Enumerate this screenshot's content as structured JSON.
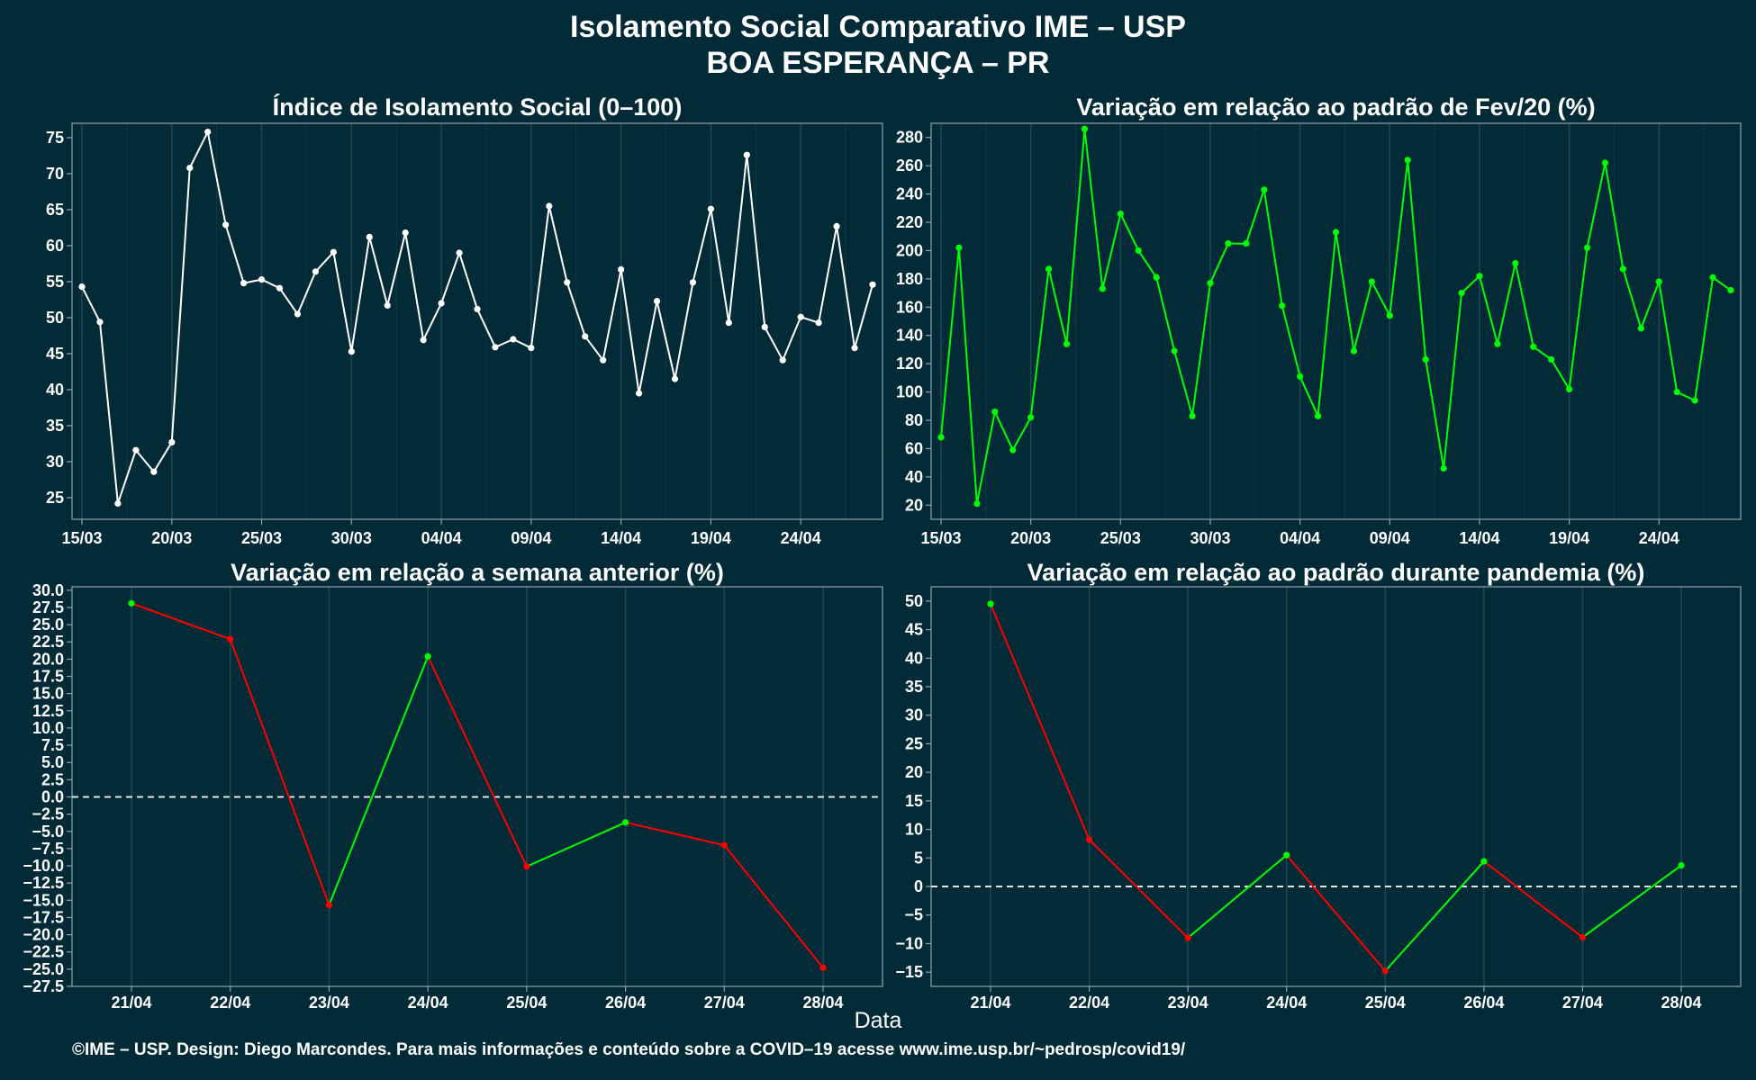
{
  "page": {
    "title_line1": "Isolamento Social Comparativo IME – USP",
    "title_line2": "BOA ESPERANÇA – PR",
    "footer": "©IME – USP. Design: Diego Marcondes. Para mais informações e conteúdo sobre a COVID–19 acesse www.ime.usp.br/~pedrosp/covid19/",
    "xlabel": "Data",
    "colors": {
      "background": "#022b37",
      "white": "#ffffff",
      "green": "#00ff00",
      "red": "#ff0000",
      "grid": "#1e4753",
      "frame": "#8ea2a8"
    }
  },
  "chart_data": [
    {
      "type": "line",
      "title": "Índice de Isolamento Social (0–100)",
      "x": [
        "15/03",
        "16/03",
        "17/03",
        "18/03",
        "19/03",
        "20/03",
        "21/03",
        "22/03",
        "23/03",
        "24/03",
        "25/03",
        "26/03",
        "27/03",
        "28/03",
        "29/03",
        "30/03",
        "31/03",
        "01/04",
        "02/04",
        "03/04",
        "04/04",
        "05/04",
        "06/04",
        "07/04",
        "08/04",
        "09/04",
        "10/04",
        "11/04",
        "12/04",
        "13/04",
        "14/04",
        "15/04",
        "16/04",
        "17/04",
        "18/04",
        "19/04",
        "20/04",
        "21/04",
        "22/04",
        "23/04",
        "24/04",
        "25/04",
        "26/04",
        "27/04",
        "28/04"
      ],
      "values": [
        54.3,
        49.4,
        24.2,
        31.6,
        28.6,
        32.7,
        70.8,
        75.8,
        62.9,
        54.8,
        55.3,
        54.1,
        50.5,
        56.4,
        59.1,
        45.3,
        61.2,
        51.7,
        61.8,
        46.9,
        52.0,
        59.0,
        51.2,
        45.9,
        47.0,
        45.8,
        65.5,
        54.9,
        47.4,
        44.1,
        56.7,
        39.5,
        52.3,
        41.5,
        54.9,
        65.1,
        49.3,
        72.6,
        48.7,
        44.1,
        50.1,
        49.3,
        62.7,
        45.8,
        54.6
      ],
      "xticks": [
        "15/03",
        "20/03",
        "25/03",
        "30/03",
        "04/04",
        "09/04",
        "14/04",
        "19/04",
        "24/04"
      ],
      "ylim": [
        22,
        77
      ],
      "yticks": [
        "25",
        "30",
        "35",
        "40",
        "45",
        "50",
        "55",
        "60",
        "65",
        "70",
        "75"
      ],
      "color": "#ffffff"
    },
    {
      "type": "line",
      "title": "Variação em relação ao padrão de Fev/20 (%)",
      "x": [
        "15/03",
        "16/03",
        "17/03",
        "18/03",
        "19/03",
        "20/03",
        "21/03",
        "22/03",
        "23/03",
        "24/03",
        "25/03",
        "26/03",
        "27/03",
        "28/03",
        "29/03",
        "30/03",
        "31/03",
        "01/04",
        "02/04",
        "03/04",
        "04/04",
        "05/04",
        "06/04",
        "07/04",
        "08/04",
        "09/04",
        "10/04",
        "11/04",
        "12/04",
        "13/04",
        "14/04",
        "15/04",
        "16/04",
        "17/04",
        "18/04",
        "19/04",
        "20/04",
        "21/04",
        "22/04",
        "23/04",
        "24/04",
        "25/04",
        "26/04",
        "27/04",
        "28/04"
      ],
      "values": [
        68,
        202,
        21,
        86,
        59,
        82,
        187,
        134,
        286,
        173,
        226,
        200,
        181,
        129,
        83,
        177,
        205,
        205,
        243,
        161,
        111,
        83,
        213,
        129,
        178,
        154,
        264,
        123,
        46,
        170,
        182,
        134,
        191,
        132,
        123,
        102,
        202,
        262,
        187,
        145,
        178,
        100,
        94,
        181,
        172
      ],
      "xticks": [
        "15/03",
        "20/03",
        "25/03",
        "30/03",
        "04/04",
        "09/04",
        "14/04",
        "19/04",
        "24/04"
      ],
      "ylim": [
        10,
        290
      ],
      "yticks": [
        "20",
        "40",
        "60",
        "80",
        "100",
        "120",
        "140",
        "160",
        "180",
        "200",
        "220",
        "240",
        "260",
        "280"
      ],
      "color": "#00ff00"
    },
    {
      "type": "line",
      "title": "Variação em relação a semana anterior (%)",
      "x": [
        "21/04",
        "22/04",
        "23/04",
        "24/04",
        "25/04",
        "26/04",
        "27/04",
        "28/04"
      ],
      "values": [
        28.1,
        22.9,
        -15.7,
        20.4,
        -10.1,
        -3.7,
        -7.0,
        -24.8
      ],
      "xticks": [
        "21/04",
        "22/04",
        "23/04",
        "24/04",
        "25/04",
        "26/04",
        "27/04",
        "28/04"
      ],
      "ylim": [
        -27.5,
        30.5
      ],
      "yticks": [
        "30.0",
        "27.5",
        "25.0",
        "22.5",
        "20.0",
        "17.5",
        "15.0",
        "12.5",
        "10.0",
        "7.5",
        "5.0",
        "2.5",
        "0.0",
        "−2.5",
        "−5.0",
        "−7.5",
        "−10.0",
        "−12.5",
        "−15.0",
        "−17.5",
        "−20.0",
        "−22.5",
        "−25.0",
        "−27.5"
      ],
      "reference_line": 0
    },
    {
      "type": "line",
      "title": "Variação em relação ao padrão durante pandemia (%)",
      "x": [
        "21/04",
        "22/04",
        "23/04",
        "24/04",
        "25/04",
        "26/04",
        "27/04",
        "28/04"
      ],
      "values": [
        49.5,
        8.2,
        -9.0,
        5.5,
        -14.8,
        4.4,
        -8.9,
        3.7
      ],
      "xticks": [
        "21/04",
        "22/04",
        "23/04",
        "24/04",
        "25/04",
        "26/04",
        "27/04",
        "28/04"
      ],
      "ylim": [
        -17.5,
        52.5
      ],
      "yticks": [
        "50",
        "45",
        "40",
        "35",
        "30",
        "25",
        "20",
        "15",
        "10",
        "5",
        "0",
        "−5",
        "−10",
        "−15"
      ],
      "reference_line": 0
    }
  ]
}
